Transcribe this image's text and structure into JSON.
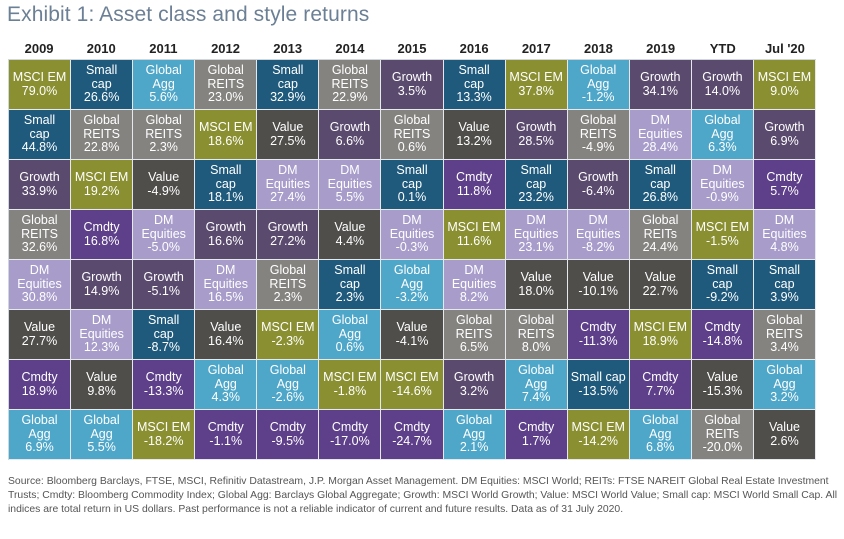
{
  "title": "Exhibit 1: Asset class and style returns",
  "chart_data": {
    "type": "table",
    "title": "Exhibit 1: Asset class and style returns",
    "columns": [
      "2009",
      "2010",
      "2011",
      "2012",
      "2013",
      "2014",
      "2015",
      "2016",
      "2017",
      "2018",
      "2019",
      "YTD",
      "Jul '20"
    ],
    "asset_colors": {
      "MSCI EM": "#8a9031",
      "Small cap": "#1f5a7d",
      "Global Agg": "#4ea6c9",
      "Global REITS": "#858380",
      "Value": "#4f4e4b",
      "Growth": "#5a4a6e",
      "DM Equities": "#a89ccb",
      "Cmdty": "#5e3f8a"
    },
    "rows": [
      [
        {
          "asset": "MSCI EM",
          "label": "MSCI EM",
          "value": "79.0%"
        },
        {
          "asset": "Small cap",
          "label": "Small\ncap",
          "value": "26.6%"
        },
        {
          "asset": "Global Agg",
          "label": "Global\nAgg",
          "value": "5.6%"
        },
        {
          "asset": "Global REITS",
          "label": "Global\nREITS",
          "value": "23.0%"
        },
        {
          "asset": "Small cap",
          "label": "Small\ncap",
          "value": "32.9%"
        },
        {
          "asset": "Global REITS",
          "label": "Global\nREITS",
          "value": "22.9%"
        },
        {
          "asset": "Growth",
          "label": "Growth",
          "value": "3.5%"
        },
        {
          "asset": "Small cap",
          "label": "Small\ncap",
          "value": "13.3%"
        },
        {
          "asset": "MSCI EM",
          "label": "MSCI EM",
          "value": "37.8%"
        },
        {
          "asset": "Global Agg",
          "label": "Global\nAgg",
          "value": "-1.2%"
        },
        {
          "asset": "Growth",
          "label": "Growth",
          "value": "34.1%"
        },
        {
          "asset": "Growth",
          "label": "Growth",
          "value": "14.0%"
        },
        {
          "asset": "MSCI EM",
          "label": "MSCI EM",
          "value": "9.0%"
        }
      ],
      [
        {
          "asset": "Small cap",
          "label": "Small\ncap",
          "value": "44.8%"
        },
        {
          "asset": "Global REITS",
          "label": "Global\nREITS",
          "value": "22.8%"
        },
        {
          "asset": "Global REITS",
          "label": "Global\nREITS",
          "value": "2.3%"
        },
        {
          "asset": "MSCI EM",
          "label": "MSCI EM",
          "value": "18.6%"
        },
        {
          "asset": "Value",
          "label": "Value",
          "value": "27.5%"
        },
        {
          "asset": "Growth",
          "label": "Growth",
          "value": "6.6%"
        },
        {
          "asset": "Global REITS",
          "label": "Global\nREITS",
          "value": "0.6%"
        },
        {
          "asset": "Value",
          "label": "Value",
          "value": "13.2%"
        },
        {
          "asset": "Growth",
          "label": "Growth",
          "value": "28.5%"
        },
        {
          "asset": "Global REITS",
          "label": "Global\nREITS",
          "value": "-4.9%"
        },
        {
          "asset": "DM Equities",
          "label": "DM\nEquities",
          "value": "28.4%"
        },
        {
          "asset": "Global Agg",
          "label": "Global\nAgg",
          "value": "6.3%"
        },
        {
          "asset": "Growth",
          "label": "Growth",
          "value": "6.9%"
        }
      ],
      [
        {
          "asset": "Growth",
          "label": "Growth",
          "value": "33.9%"
        },
        {
          "asset": "MSCI EM",
          "label": "MSCI EM",
          "value": "19.2%"
        },
        {
          "asset": "Value",
          "label": "Value",
          "value": "-4.9%"
        },
        {
          "asset": "Small cap",
          "label": "Small\ncap",
          "value": "18.1%"
        },
        {
          "asset": "DM Equities",
          "label": "DM\nEquities",
          "value": "27.4%"
        },
        {
          "asset": "DM Equities",
          "label": "DM\nEquities",
          "value": "5.5%"
        },
        {
          "asset": "Small cap",
          "label": "Small\ncap",
          "value": "0.1%"
        },
        {
          "asset": "Cmdty",
          "label": "Cmdty",
          "value": "11.8%"
        },
        {
          "asset": "Small cap",
          "label": "Small\ncap",
          "value": "23.2%"
        },
        {
          "asset": "Growth",
          "label": "Growth",
          "value": "-6.4%"
        },
        {
          "asset": "Small cap",
          "label": "Small\ncap",
          "value": "26.8%"
        },
        {
          "asset": "DM Equities",
          "label": "DM\nEquities",
          "value": "-0.9%"
        },
        {
          "asset": "Cmdty",
          "label": "Cmdty",
          "value": "5.7%"
        }
      ],
      [
        {
          "asset": "Global REITS",
          "label": "Global\nREITS",
          "value": "32.6%"
        },
        {
          "asset": "Cmdty",
          "label": "Cmdty",
          "value": "16.8%"
        },
        {
          "asset": "DM Equities",
          "label": "DM\nEquities",
          "value": "-5.0%"
        },
        {
          "asset": "Growth",
          "label": "Growth",
          "value": "16.6%"
        },
        {
          "asset": "Growth",
          "label": "Growth",
          "value": "27.2%"
        },
        {
          "asset": "Value",
          "label": "Value",
          "value": "4.4%"
        },
        {
          "asset": "DM Equities",
          "label": "DM\nEquities",
          "value": "-0.3%"
        },
        {
          "asset": "MSCI EM",
          "label": "MSCI EM",
          "value": "11.6%"
        },
        {
          "asset": "DM Equities",
          "label": "DM\nEquities",
          "value": "23.1%"
        },
        {
          "asset": "DM Equities",
          "label": "DM\nEquities",
          "value": "-8.2%"
        },
        {
          "asset": "Global REITS",
          "label": "Global\nREITs",
          "value": "24.4%"
        },
        {
          "asset": "MSCI EM",
          "label": "MSCI EM",
          "value": "-1.5%"
        },
        {
          "asset": "DM Equities",
          "label": "DM\nEquities",
          "value": "4.8%"
        }
      ],
      [
        {
          "asset": "DM Equities",
          "label": "DM\nEquities",
          "value": "30.8%"
        },
        {
          "asset": "Growth",
          "label": "Growth",
          "value": "14.9%"
        },
        {
          "asset": "Growth",
          "label": "Growth",
          "value": "-5.1%"
        },
        {
          "asset": "DM Equities",
          "label": "DM\nEquities",
          "value": "16.5%"
        },
        {
          "asset": "Global REITS",
          "label": "Global\nREITS",
          "value": "2.3%"
        },
        {
          "asset": "Small cap",
          "label": "Small\ncap",
          "value": "2.3%"
        },
        {
          "asset": "Global Agg",
          "label": "Global\nAgg",
          "value": "-3.2%"
        },
        {
          "asset": "DM Equities",
          "label": "DM\nEquities",
          "value": "8.2%"
        },
        {
          "asset": "Value",
          "label": "Value",
          "value": "18.0%"
        },
        {
          "asset": "Value",
          "label": "Value",
          "value": "-10.1%"
        },
        {
          "asset": "Value",
          "label": "Value",
          "value": "22.7%"
        },
        {
          "asset": "Small cap",
          "label": "Small\ncap",
          "value": "-9.2%"
        },
        {
          "asset": "Small cap",
          "label": "Small\ncap",
          "value": "3.9%"
        }
      ],
      [
        {
          "asset": "Value",
          "label": "Value",
          "value": "27.7%"
        },
        {
          "asset": "DM Equities",
          "label": "DM\nEquities",
          "value": "12.3%"
        },
        {
          "asset": "Small cap",
          "label": "Small\ncap",
          "value": "-8.7%"
        },
        {
          "asset": "Value",
          "label": "Value",
          "value": "16.4%"
        },
        {
          "asset": "MSCI EM",
          "label": "MSCI EM",
          "value": "-2.3%"
        },
        {
          "asset": "Global Agg",
          "label": "Global\nAgg",
          "value": "0.6%"
        },
        {
          "asset": "Value",
          "label": "Value",
          "value": "-4.1%"
        },
        {
          "asset": "Global REITS",
          "label": "Global\nREITS",
          "value": "6.5%"
        },
        {
          "asset": "Global REITS",
          "label": "Global\nREITS",
          "value": "8.0%"
        },
        {
          "asset": "Cmdty",
          "label": "Cmdty",
          "value": "-11.3%"
        },
        {
          "asset": "MSCI EM",
          "label": "MSCI EM",
          "value": "18.9%"
        },
        {
          "asset": "Cmdty",
          "label": "Cmdty",
          "value": "-14.8%"
        },
        {
          "asset": "Global REITS",
          "label": "Global\nREITS",
          "value": "3.4%"
        }
      ],
      [
        {
          "asset": "Cmdty",
          "label": "Cmdty",
          "value": "18.9%"
        },
        {
          "asset": "Value",
          "label": "Value",
          "value": "9.8%"
        },
        {
          "asset": "Cmdty",
          "label": "Cmdty",
          "value": "-13.3%"
        },
        {
          "asset": "Global Agg",
          "label": "Global\nAgg",
          "value": "4.3%"
        },
        {
          "asset": "Global Agg",
          "label": "Global\nAgg",
          "value": "-2.6%"
        },
        {
          "asset": "MSCI EM",
          "label": "MSCI EM",
          "value": "-1.8%"
        },
        {
          "asset": "MSCI EM",
          "label": "MSCI EM",
          "value": "-14.6%"
        },
        {
          "asset": "Growth",
          "label": "Growth",
          "value": "3.2%"
        },
        {
          "asset": "Global Agg",
          "label": "Global\nAgg",
          "value": "7.4%"
        },
        {
          "asset": "Small cap",
          "label": "Small cap",
          "value": "-13.5%"
        },
        {
          "asset": "Cmdty",
          "label": "Cmdty",
          "value": "7.7%"
        },
        {
          "asset": "Value",
          "label": "Value",
          "value": "-15.3%"
        },
        {
          "asset": "Global Agg",
          "label": "Global\nAgg",
          "value": "3.2%"
        }
      ],
      [
        {
          "asset": "Global Agg",
          "label": "Global\nAgg",
          "value": "6.9%"
        },
        {
          "asset": "Global Agg",
          "label": "Global\nAgg",
          "value": "5.5%"
        },
        {
          "asset": "MSCI EM",
          "label": "MSCI EM",
          "value": "-18.2%"
        },
        {
          "asset": "Cmdty",
          "label": "Cmdty",
          "value": "-1.1%"
        },
        {
          "asset": "Cmdty",
          "label": "Cmdty",
          "value": "-9.5%"
        },
        {
          "asset": "Cmdty",
          "label": "Cmdty",
          "value": "-17.0%"
        },
        {
          "asset": "Cmdty",
          "label": "Cmdty",
          "value": "-24.7%"
        },
        {
          "asset": "Global Agg",
          "label": "Global\nAgg",
          "value": "2.1%"
        },
        {
          "asset": "Cmdty",
          "label": "Cmdty",
          "value": "1.7%"
        },
        {
          "asset": "MSCI EM",
          "label": "MSCI EM",
          "value": "-14.2%"
        },
        {
          "asset": "Global Agg",
          "label": "Global\nAgg",
          "value": "6.8%"
        },
        {
          "asset": "Global REITS",
          "label": "Global\nREITs",
          "value": "-20.0%"
        },
        {
          "asset": "Value",
          "label": "Value",
          "value": "2.6%"
        }
      ]
    ]
  },
  "footnote": "Source: Bloomberg Barclays, FTSE, MSCI, Refinitiv Datastream, J.P. Morgan Asset Management. DM Equities: MSCI World; REITs: FTSE NAREIT Global Real Estate Investment Trusts; Cmdty: Bloomberg Commodity Index; Global Agg: Barclays Global Aggregate; Growth: MSCI World Growth; Value: MSCI World Value; Small cap: MSCI World Small Cap. All indices are total return in US dollars. Past performance is not a reliable indicator of current and future results. Data as of 31 July 2020."
}
